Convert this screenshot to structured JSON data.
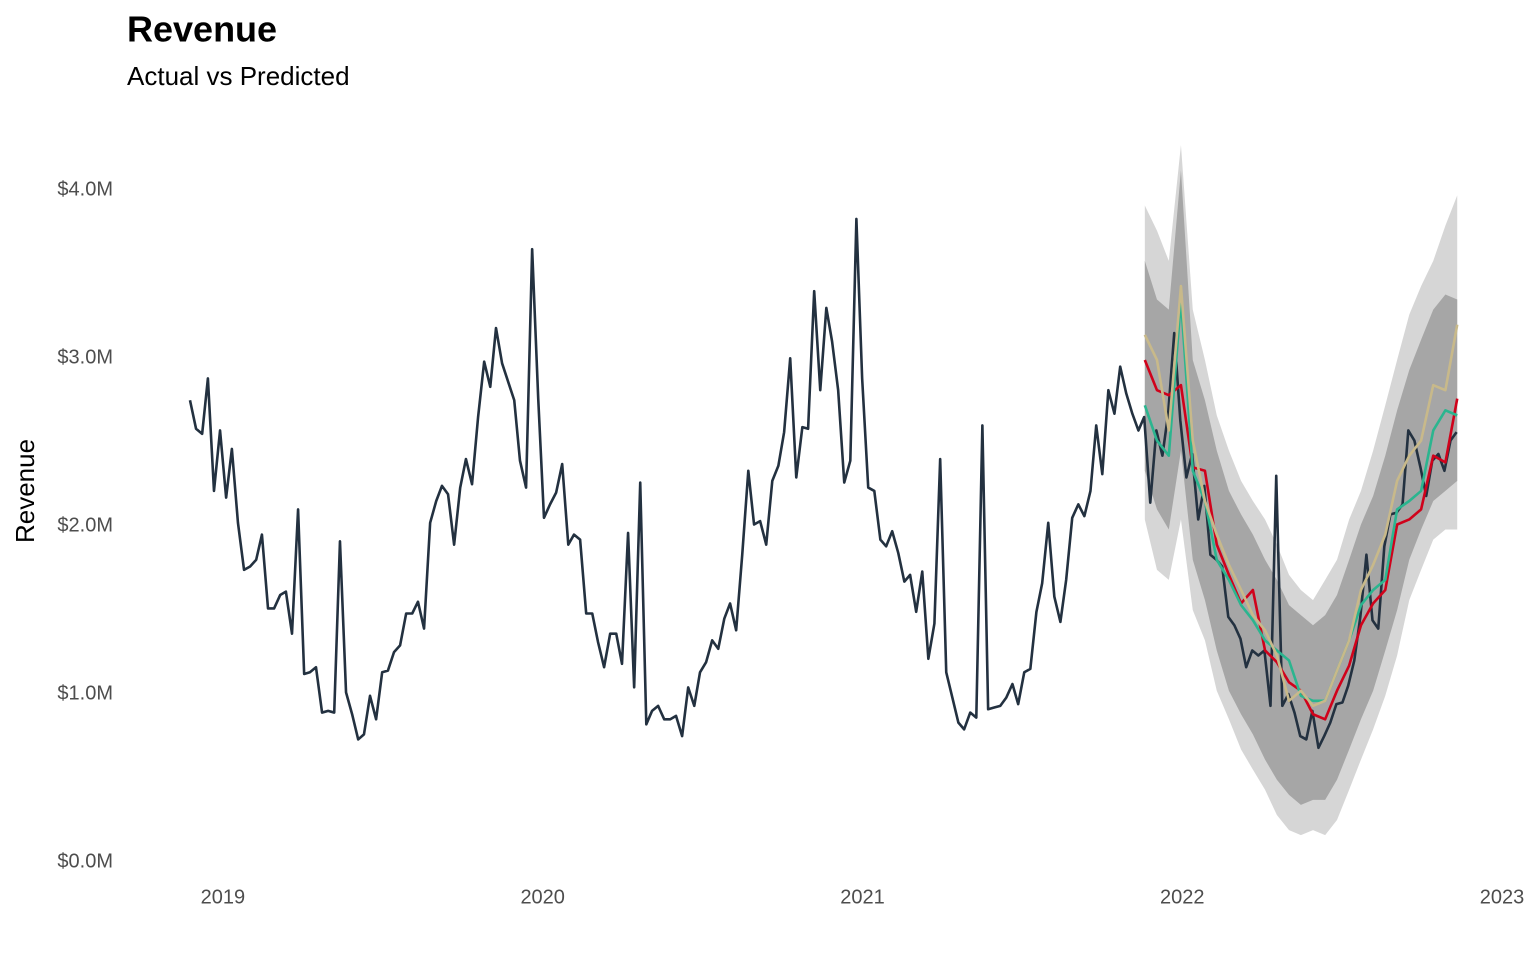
{
  "chart_data": {
    "type": "line",
    "title": "Revenue",
    "subtitle": "Actual vs Predicted",
    "y_label": "Revenue",
    "grid": false,
    "xlim": [
      2018.7,
      2023
    ],
    "xticks": [
      2019,
      2020,
      2021,
      2022,
      2023
    ],
    "ylim": [
      0,
      4300000
    ],
    "yticks": [
      {
        "value": 0,
        "label": "$0.0M"
      },
      {
        "value": 1000000,
        "label": "$1.0M"
      },
      {
        "value": 2000000,
        "label": "$2.0M"
      },
      {
        "value": 3000000,
        "label": "$3.0M"
      },
      {
        "value": 4000000,
        "label": "$4.0M"
      }
    ],
    "x": [
      2018.897,
      2018.916,
      2018.935,
      2018.953,
      2018.972,
      2018.991,
      2019.01,
      2019.028,
      2019.047,
      2019.066,
      2019.085,
      2019.104,
      2019.122,
      2019.141,
      2019.16,
      2019.179,
      2019.197,
      2019.216,
      2019.235,
      2019.254,
      2019.272,
      2019.291,
      2019.31,
      2019.329,
      2019.348,
      2019.366,
      2019.385,
      2019.404,
      2019.423,
      2019.441,
      2019.46,
      2019.479,
      2019.498,
      2019.516,
      2019.535,
      2019.554,
      2019.573,
      2019.592,
      2019.61,
      2019.629,
      2019.648,
      2019.667,
      2019.685,
      2019.704,
      2019.723,
      2019.742,
      2019.76,
      2019.779,
      2019.798,
      2019.817,
      2019.836,
      2019.854,
      2019.873,
      2019.892,
      2019.911,
      2019.929,
      2019.948,
      2019.967,
      2019.986,
      2020.004,
      2020.023,
      2020.042,
      2020.061,
      2020.08,
      2020.098,
      2020.117,
      2020.136,
      2020.155,
      2020.173,
      2020.192,
      2020.211,
      2020.23,
      2020.248,
      2020.267,
      2020.286,
      2020.305,
      2020.324,
      2020.342,
      2020.361,
      2020.38,
      2020.399,
      2020.417,
      2020.436,
      2020.455,
      2020.474,
      2020.492,
      2020.511,
      2020.53,
      2020.549,
      2020.568,
      2020.586,
      2020.605,
      2020.624,
      2020.643,
      2020.661,
      2020.68,
      2020.699,
      2020.718,
      2020.737,
      2020.755,
      2020.774,
      2020.793,
      2020.812,
      2020.83,
      2020.849,
      2020.868,
      2020.887,
      2020.905,
      2020.924,
      2020.943,
      2020.962,
      2020.981,
      2020.999,
      2021.018,
      2021.037,
      2021.056,
      2021.074,
      2021.093,
      2021.112,
      2021.131,
      2021.149,
      2021.168,
      2021.187,
      2021.206,
      2021.225,
      2021.243,
      2021.262,
      2021.281,
      2021.3,
      2021.318,
      2021.337,
      2021.356,
      2021.375,
      2021.393,
      2021.412,
      2021.431,
      2021.45,
      2021.469,
      2021.487,
      2021.506,
      2021.525,
      2021.544,
      2021.562,
      2021.581,
      2021.6,
      2021.619,
      2021.637,
      2021.656,
      2021.675,
      2021.694,
      2021.713,
      2021.731,
      2021.75,
      2021.769,
      2021.788,
      2021.806,
      2021.825,
      2021.844,
      2021.863,
      2021.881,
      2021.9,
      2021.919,
      2021.938,
      2021.956,
      2021.975,
      2021.994,
      2022.013,
      2022.031,
      2022.05,
      2022.069,
      2022.088,
      2022.107,
      2022.125,
      2022.144,
      2022.163,
      2022.182,
      2022.2,
      2022.219,
      2022.238,
      2022.257,
      2022.276,
      2022.294,
      2022.313,
      2022.332,
      2022.351,
      2022.369,
      2022.388,
      2022.407,
      2022.426,
      2022.444,
      2022.463,
      2022.482,
      2022.501,
      2022.519,
      2022.538,
      2022.557,
      2022.576,
      2022.595,
      2022.613,
      2022.632,
      2022.651,
      2022.67,
      2022.689,
      2022.707,
      2022.726,
      2022.745,
      2022.763,
      2022.782,
      2022.801,
      2022.82,
      2022.839,
      2022.858
    ],
    "series": [
      {
        "color": "#233140",
        "values": [
          2750000,
          2580000,
          2550000,
          2880000,
          2210000,
          2570000,
          2170000,
          2460000,
          2020000,
          1740000,
          1760000,
          1800000,
          1950000,
          1510000,
          1510000,
          1590000,
          1610000,
          1360000,
          2100000,
          1120000,
          1130000,
          1160000,
          890000,
          900000,
          890000,
          1910000,
          1010000,
          880000,
          730000,
          760000,
          990000,
          850000,
          1130000,
          1140000,
          1250000,
          1290000,
          1480000,
          1480000,
          1550000,
          1390000,
          2020000,
          2150000,
          2240000,
          2190000,
          1890000,
          2230000,
          2400000,
          2250000,
          2650000,
          2980000,
          2830000,
          3180000,
          2970000,
          2860000,
          2750000,
          2390000,
          2230000,
          3650000,
          2760000,
          2050000,
          2130000,
          2200000,
          2370000,
          1890000,
          1950000,
          1920000,
          1480000,
          1480000,
          1310000,
          1160000,
          1360000,
          1360000,
          1180000,
          1960000,
          1040000,
          2260000,
          820000,
          900000,
          930000,
          850000,
          850000,
          870000,
          750000,
          1040000,
          930000,
          1130000,
          1190000,
          1320000,
          1270000,
          1450000,
          1540000,
          1380000,
          1830000,
          2330000,
          2010000,
          2030000,
          1890000,
          2270000,
          2360000,
          2560000,
          3000000,
          2290000,
          2590000,
          2580000,
          3400000,
          2810000,
          3300000,
          3100000,
          2810000,
          2260000,
          2390000,
          3830000,
          2880000,
          2230000,
          2210000,
          1920000,
          1880000,
          1970000,
          1840000,
          1670000,
          1710000,
          1490000,
          1730000,
          1210000,
          1420000,
          2400000,
          1130000,
          980000,
          830000,
          790000,
          890000,
          860000,
          2600000,
          910000,
          920000,
          930000,
          980000,
          1060000,
          940000,
          1130000,
          1150000,
          1490000,
          1660000,
          2020000,
          1580000,
          1430000,
          1680000,
          2050000,
          2130000,
          2060000,
          2210000,
          2600000,
          2310000,
          2810000,
          2670000,
          2950000,
          2790000,
          2670000,
          2570000,
          2650000,
          2140000,
          2570000,
          2420000,
          2670000,
          3150000,
          2630000,
          2290000,
          2430000,
          2040000,
          2240000,
          1830000,
          1800000,
          1760000,
          1460000,
          1410000,
          1330000,
          1160000,
          1260000,
          1230000,
          1260000,
          930000,
          2300000,
          930000,
          1000000,
          890000,
          750000,
          730000,
          900000,
          680000,
          750000,
          830000,
          940000,
          950000,
          1050000,
          1200000,
          1460000,
          1830000,
          1440000,
          1390000,
          1880000,
          2070000,
          2080000,
          2130000,
          2570000,
          2510000,
          2350000,
          2180000,
          2390000,
          2430000,
          2330000,
          2510000,
          2560000
        ]
      }
    ],
    "forecast": {
      "x": [
        2021.883,
        2021.921,
        2021.958,
        2021.996,
        2022.033,
        2022.071,
        2022.108,
        2022.146,
        2022.184,
        2022.221,
        2022.259,
        2022.296,
        2022.334,
        2022.371,
        2022.409,
        2022.447,
        2022.484,
        2022.522,
        2022.559,
        2022.597,
        2022.635,
        2022.672,
        2022.71,
        2022.747,
        2022.785,
        2022.823,
        2022.86
      ],
      "bands": [
        {
          "color": "#d6d6d6",
          "upper": [
            3910000,
            3760000,
            3580000,
            4270000,
            3290000,
            2990000,
            2660000,
            2450000,
            2270000,
            2150000,
            2040000,
            1890000,
            1710000,
            1620000,
            1560000,
            1680000,
            1800000,
            2040000,
            2210000,
            2450000,
            2720000,
            2990000,
            3260000,
            3430000,
            3580000,
            3790000,
            3970000
          ],
          "lower": [
            2040000,
            1740000,
            1680000,
            2040000,
            1500000,
            1320000,
            1020000,
            850000,
            670000,
            550000,
            430000,
            280000,
            190000,
            160000,
            190000,
            160000,
            250000,
            430000,
            610000,
            790000,
            990000,
            1230000,
            1560000,
            1740000,
            1920000,
            1980000,
            1980000
          ]
        },
        {
          "color": "#a6a6a6",
          "upper": [
            3580000,
            3350000,
            3290000,
            4120000,
            2990000,
            2750000,
            2450000,
            2210000,
            2070000,
            1950000,
            1800000,
            1680000,
            1530000,
            1470000,
            1410000,
            1470000,
            1590000,
            1800000,
            2010000,
            2180000,
            2420000,
            2690000,
            2930000,
            3110000,
            3290000,
            3380000,
            3350000
          ],
          "lower": [
            2330000,
            2100000,
            1980000,
            2450000,
            1800000,
            1560000,
            1260000,
            1020000,
            880000,
            760000,
            610000,
            490000,
            400000,
            340000,
            370000,
            370000,
            490000,
            670000,
            850000,
            1020000,
            1260000,
            1500000,
            1800000,
            1980000,
            2150000,
            2210000,
            2270000
          ]
        }
      ],
      "series": [
        {
          "color": "#d0021b",
          "values": [
            2990000,
            2810000,
            2780000,
            2840000,
            2350000,
            2330000,
            1890000,
            1710000,
            1540000,
            1620000,
            1260000,
            1190000,
            1070000,
            1020000,
            880000,
            850000,
            1020000,
            1170000,
            1410000,
            1540000,
            1620000,
            2010000,
            2040000,
            2100000,
            2420000,
            2380000,
            2760000
          ]
        },
        {
          "color": "#2bb58f",
          "values": [
            2720000,
            2510000,
            2420000,
            3350000,
            2330000,
            2150000,
            1800000,
            1680000,
            1530000,
            1440000,
            1320000,
            1260000,
            1200000,
            990000,
            960000,
            960000,
            1140000,
            1320000,
            1530000,
            1620000,
            1680000,
            2100000,
            2150000,
            2210000,
            2570000,
            2690000,
            2660000
          ]
        },
        {
          "color": "#c8b98a",
          "values": [
            3140000,
            2990000,
            2570000,
            3430000,
            2510000,
            2150000,
            1950000,
            1770000,
            1620000,
            1470000,
            1380000,
            1230000,
            960000,
            1020000,
            930000,
            960000,
            1140000,
            1320000,
            1620000,
            1770000,
            1950000,
            2270000,
            2420000,
            2510000,
            2840000,
            2810000,
            3200000
          ]
        }
      ]
    }
  }
}
